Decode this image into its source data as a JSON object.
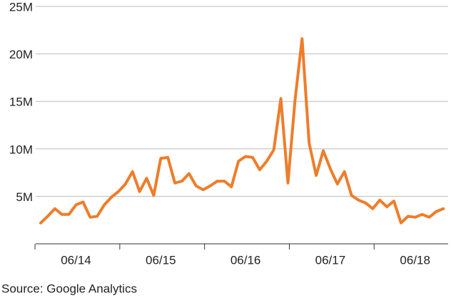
{
  "chart_data": {
    "type": "line",
    "categories": [
      null,
      null,
      null,
      null,
      null,
      "06/14",
      null,
      null,
      null,
      null,
      null,
      null,
      null,
      null,
      null,
      null,
      null,
      "06/15",
      null,
      null,
      null,
      null,
      null,
      null,
      null,
      null,
      null,
      null,
      null,
      "06/16",
      null,
      null,
      null,
      null,
      null,
      null,
      null,
      null,
      null,
      null,
      null,
      "06/17",
      null,
      null,
      null,
      null,
      null,
      null,
      null,
      null,
      null,
      null,
      null,
      "06/18",
      null,
      null,
      null,
      null
    ],
    "series": [
      {
        "color": "#ee7d2b",
        "values": [
          2200000,
          2900000,
          3700000,
          3100000,
          3100000,
          4100000,
          4400000,
          2800000,
          2900000,
          4100000,
          4900000,
          5500000,
          6300000,
          7600000,
          5500000,
          6900000,
          5100000,
          9000000,
          9100000,
          6400000,
          6600000,
          7400000,
          6100000,
          5700000,
          6100000,
          6600000,
          6600000,
          6000000,
          8700000,
          9200000,
          9100000,
          7800000,
          8700000,
          9900000,
          15300000,
          6400000,
          15100000,
          21600000,
          10600000,
          7200000,
          9800000,
          7900000,
          6300000,
          7600000,
          5100000,
          4600000,
          4300000,
          3700000,
          4600000,
          3900000,
          4500000,
          2200000,
          2900000,
          2800000,
          3100000,
          2800000,
          3400000,
          3700000
        ]
      }
    ],
    "ylim": [
      0,
      25000000
    ],
    "yticks": [
      {
        "value": 5000000,
        "label": "5M"
      },
      {
        "value": 10000000,
        "label": "10M"
      },
      {
        "value": 15000000,
        "label": "15M"
      },
      {
        "value": 20000000,
        "label": "20M"
      },
      {
        "value": 25000000,
        "label": "25M"
      }
    ],
    "grid": true,
    "source": "Source: Google Analytics"
  }
}
